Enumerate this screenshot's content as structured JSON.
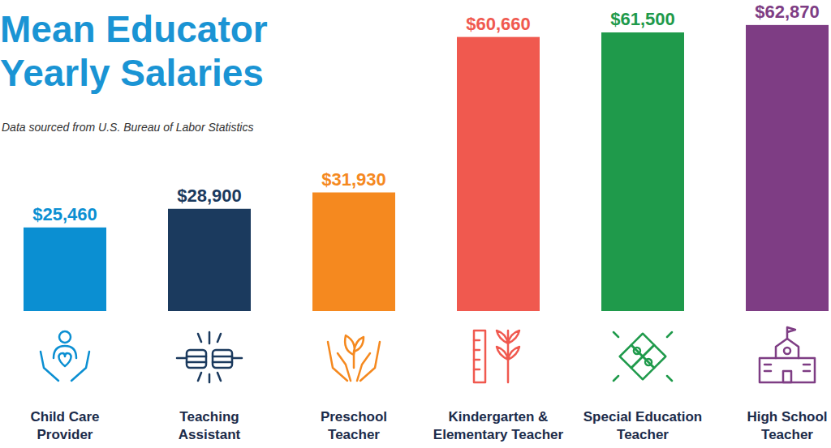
{
  "chart_data": {
    "type": "bar",
    "title": "Mean Educator Yearly Salaries",
    "subtitle": "Data sourced from U.S. Bureau of Labor Statistics",
    "categories": [
      "Child Care Provider",
      "Teaching Assistant",
      "Preschool Teacher",
      "Kindergarten & Elementary Teacher",
      "Special Education Teacher",
      "High School Teacher"
    ],
    "values": [
      25460,
      28900,
      31930,
      60660,
      61500,
      62870
    ],
    "value_labels": [
      "$25,460",
      "$28,900",
      "$31,930",
      "$60,660",
      "$61,500",
      "$62,870"
    ],
    "colors": [
      "#0b8fd2",
      "#1b3a5e",
      "#f5891f",
      "#f0594f",
      "#1f9a4b",
      "#7e3d84"
    ],
    "ylim": [
      10000,
      63000
    ],
    "data_labels": true,
    "tick_labels": false,
    "grid": false
  }
}
